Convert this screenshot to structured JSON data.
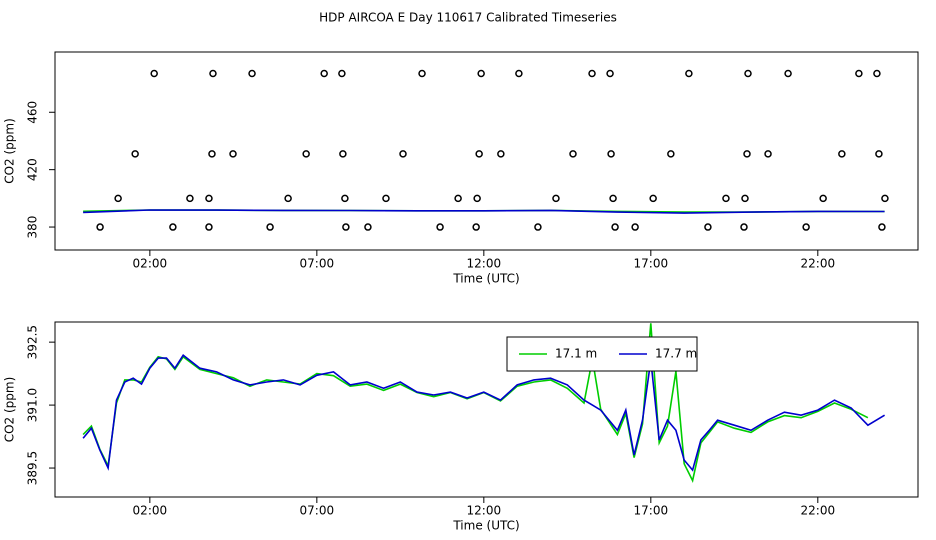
{
  "title": "HDP AIRCOA E  Day 110617  Calibrated Timeseries",
  "chart_data": [
    {
      "type": "line",
      "xlabel": "Time (UTC)",
      "ylabel": "CO2 (ppm)",
      "xlim": [
        -0.84,
        25.0
      ],
      "ylim": [
        364,
        502
      ],
      "xticks": [
        {
          "value": 2,
          "label": "02:00"
        },
        {
          "value": 7,
          "label": "07:00"
        },
        {
          "value": 12,
          "label": "12:00"
        },
        {
          "value": 17,
          "label": "17:00"
        },
        {
          "value": 22,
          "label": "22:00"
        }
      ],
      "yticks": [
        380,
        420,
        460
      ],
      "x": [
        0,
        2,
        4,
        6,
        8,
        10,
        12,
        14,
        16,
        18,
        20,
        22,
        24
      ],
      "series": [
        {
          "color": "#00cd00",
          "values": [
            391.0,
            391.9,
            391.8,
            391.6,
            391.5,
            391.3,
            391.3,
            391.6,
            390.9,
            390.5,
            390.4,
            390.9,
            390.8
          ]
        },
        {
          "color": "#0000cd",
          "values": [
            390.2,
            391.9,
            391.8,
            391.6,
            391.5,
            391.3,
            391.3,
            391.6,
            390.4,
            389.7,
            390.4,
            390.9,
            390.8
          ]
        }
      ],
      "markers": {
        "x": [
          2.13,
          3.89,
          5.06,
          7.22,
          7.75,
          10.15,
          11.92,
          13.05,
          15.24,
          15.78,
          18.14,
          19.91,
          21.11,
          23.23,
          23.77,
          1.56,
          3.86,
          4.49,
          6.68,
          7.78,
          9.58,
          11.86,
          12.51,
          14.67,
          15.81,
          17.6,
          19.88,
          20.51,
          22.72,
          23.83,
          1.05,
          3.2,
          3.77,
          6.14,
          7.84,
          9.07,
          11.23,
          11.8,
          14.16,
          15.87,
          17.07,
          19.25,
          19.82,
          22.16,
          24.01,
          0.51,
          2.69,
          3.77,
          5.6,
          7.87,
          8.53,
          10.69,
          11.77,
          13.62,
          15.93,
          16.53,
          18.71,
          19.79,
          21.65,
          23.92
        ],
        "values": [
          487,
          487,
          487,
          487,
          487,
          487,
          487,
          487,
          487,
          487,
          487,
          487,
          487,
          487,
          487,
          431,
          431,
          431,
          431,
          431,
          431,
          431,
          431,
          431,
          431,
          431,
          431,
          431,
          431,
          431,
          400,
          400,
          400,
          400,
          400,
          400,
          400,
          400,
          400,
          400,
          400,
          400,
          400,
          400,
          400,
          380,
          380,
          380,
          380,
          380,
          380,
          380,
          380,
          380,
          380,
          380,
          380,
          380,
          380,
          380
        ],
        "color": "#000000"
      }
    },
    {
      "type": "line",
      "xlabel": "Time (UTC)",
      "ylabel": "CO2 (ppm)",
      "xlim": [
        -0.84,
        25.0
      ],
      "ylim": [
        388.81,
        392.98
      ],
      "xticks": [
        {
          "value": 2,
          "label": "02:00"
        },
        {
          "value": 7,
          "label": "07:00"
        },
        {
          "value": 12,
          "label": "12:00"
        },
        {
          "value": 17,
          "label": "17:00"
        },
        {
          "value": 22,
          "label": "22:00"
        }
      ],
      "yticks": [
        389.5,
        {
          "value": 391,
          "label": "391.0"
        },
        392.5
      ],
      "legend": "top",
      "x": [
        0,
        0.25,
        0.5,
        0.75,
        1,
        1.25,
        1.5,
        1.75,
        2,
        2.25,
        2.5,
        2.75,
        3,
        3.5,
        4,
        4.5,
        5,
        5.5,
        6,
        6.5,
        7,
        7.5,
        8,
        8.5,
        9,
        9.5,
        10,
        10.5,
        11,
        11.5,
        12,
        12.5,
        13,
        13.5,
        14,
        14.5,
        15,
        15.25,
        15.5,
        16,
        16.25,
        16.5,
        16.75,
        17,
        17.25,
        17.5,
        17.75,
        18,
        18.25,
        18.5,
        18.75,
        19,
        19.5,
        20,
        20.5,
        21,
        21.5,
        22,
        22.5,
        23,
        23.5,
        24
      ],
      "series": [
        {
          "name": "17.1 m",
          "color": "#00cd00",
          "values": [
            390.3,
            390.5,
            389.95,
            389.55,
            391.05,
            391.6,
            391.6,
            391.55,
            391.9,
            392.15,
            392.1,
            391.85,
            392.15,
            391.85,
            391.75,
            391.65,
            391.45,
            391.6,
            391.55,
            391.5,
            391.75,
            391.7,
            391.45,
            391.5,
            391.35,
            391.5,
            391.3,
            391.2,
            391.3,
            391.15,
            391.3,
            391.1,
            391.45,
            391.55,
            391.6,
            391.4,
            391.05,
            392.1,
            390.9,
            390.3,
            390.8,
            389.75,
            390.55,
            392.95,
            390.1,
            390.5,
            391.8,
            389.6,
            389.2,
            390.1,
            390.35,
            390.6,
            390.45,
            390.35,
            390.6,
            390.75,
            390.7,
            390.85,
            391.05,
            390.9,
            390.7,
            null
          ]
        },
        {
          "name": "17.7 m",
          "color": "#0000cd",
          "values": [
            390.21,
            390.45,
            389.93,
            389.5,
            391.12,
            391.55,
            391.64,
            391.5,
            391.88,
            392.12,
            392.12,
            391.88,
            392.19,
            391.88,
            391.79,
            391.6,
            391.48,
            391.55,
            391.6,
            391.48,
            391.71,
            391.79,
            391.48,
            391.55,
            391.4,
            391.55,
            391.31,
            391.24,
            391.31,
            391.17,
            391.31,
            391.12,
            391.48,
            391.6,
            391.64,
            391.48,
            391.12,
            391.0,
            390.88,
            390.4,
            390.88,
            389.81,
            390.64,
            392.07,
            390.17,
            390.64,
            390.4,
            389.69,
            389.45,
            390.17,
            390.4,
            390.64,
            390.52,
            390.4,
            390.64,
            390.83,
            390.76,
            390.88,
            391.12,
            390.93,
            390.52,
            390.76
          ]
        }
      ]
    }
  ]
}
